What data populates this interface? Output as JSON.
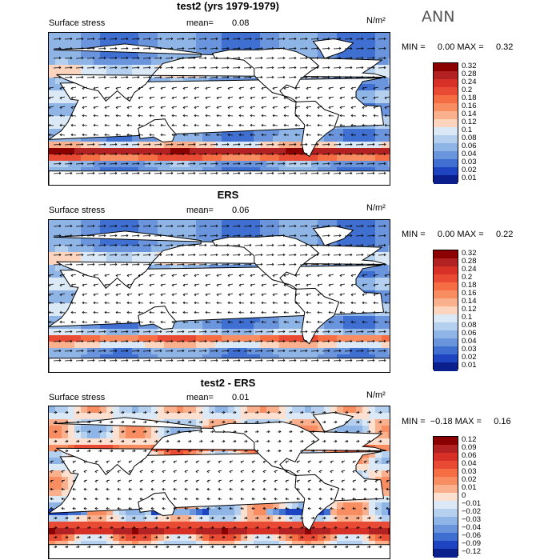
{
  "season": "ANN",
  "units": "N/m²",
  "panels": [
    {
      "id": "panel-1",
      "title": "test2 (yrs 1979-1979)",
      "field": "Surface stress",
      "mean_label": "mean=",
      "mean_value": "0.08",
      "minmax": "MIN =     0.00 MAX =     0.32",
      "colorbar": [
        "0.32",
        "0.28",
        "0.24",
        "0.2",
        "0.18",
        "0.16",
        "0.14",
        "0.12",
        "0.1",
        "0.08",
        "0.06",
        "0.04",
        "0.03",
        "0.02",
        "0.01"
      ],
      "colors": [
        "#8b0000",
        "#b22222",
        "#d73027",
        "#e84a33",
        "#f46d43",
        "#f88d62",
        "#fbb08d",
        "#fdd5be",
        "#dbe9f6",
        "#b5d0ee",
        "#8fb5e6",
        "#6a95dc",
        "#3f6fd0",
        "#1f44c2",
        "#0a1e8c"
      ],
      "mode": "abs"
    },
    {
      "id": "panel-2",
      "title": "ERS",
      "field": "Surface stress",
      "mean_label": "mean=",
      "mean_value": "0.06",
      "minmax": "MIN =     0.00 MAX =     0.22",
      "colorbar": [
        "0.32",
        "0.28",
        "0.24",
        "0.2",
        "0.18",
        "0.16",
        "0.14",
        "0.12",
        "0.1",
        "0.08",
        "0.06",
        "0.04",
        "0.03",
        "0.02",
        "0.01"
      ],
      "colors": [
        "#8b0000",
        "#b22222",
        "#d73027",
        "#e84a33",
        "#f46d43",
        "#f88d62",
        "#fbb08d",
        "#fdd5be",
        "#dbe9f6",
        "#b5d0ee",
        "#8fb5e6",
        "#6a95dc",
        "#3f6fd0",
        "#1f44c2",
        "#0a1e8c"
      ],
      "mode": "abs2"
    },
    {
      "id": "panel-3",
      "title": "test2 - ERS",
      "field": "Surface stress",
      "mean_label": "mean=",
      "mean_value": "0.01",
      "minmax": "MIN =  −0.18 MAX =     0.16",
      "colorbar": [
        "0.12",
        "0.09",
        "0.06",
        "0.04",
        "0.03",
        "0.02",
        "0.01",
        "0",
        "−0.01",
        "−0.02",
        "−0.03",
        "−0.04",
        "−0.06",
        "−0.09",
        "−0.12"
      ],
      "colors": [
        "#8b0000",
        "#b22222",
        "#d73027",
        "#e84a33",
        "#f46d43",
        "#f88d62",
        "#fbb08d",
        "#fde0cf",
        "#dbe9f6",
        "#b5d0ee",
        "#8fb5e6",
        "#6a95dc",
        "#3f6fd0",
        "#1f44c2",
        "#0a1e8c"
      ],
      "mode": "diff"
    }
  ]
}
